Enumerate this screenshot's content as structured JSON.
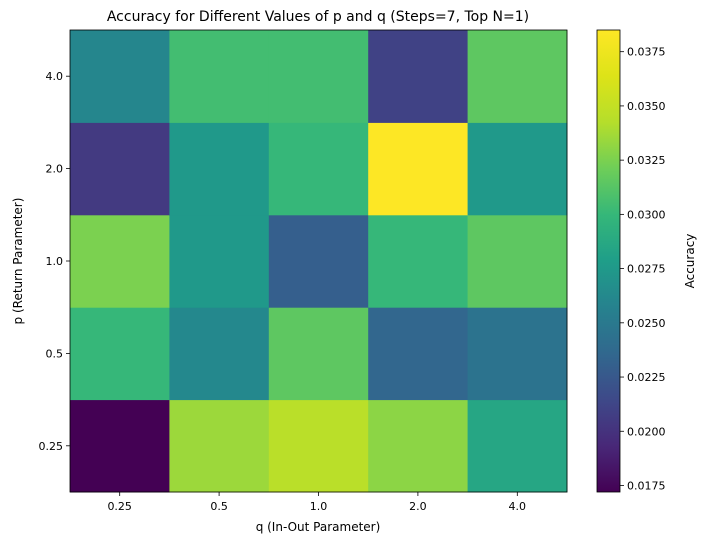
{
  "chart_data": {
    "type": "heatmap",
    "title": "Accuracy for Different Values of p and q (Steps=7, Top N=1)",
    "xlabel": "q (In-Out Parameter)",
    "ylabel": "p (Return Parameter)",
    "x_categories": [
      "0.25",
      "0.5",
      "1.0",
      "2.0",
      "4.0"
    ],
    "y_categories": [
      "0.25",
      "0.5",
      "1.0",
      "2.0",
      "4.0"
    ],
    "values": [
      [
        0.0172,
        0.0335,
        0.0345,
        0.033,
        0.0285
      ],
      [
        0.03,
        0.0262,
        0.0315,
        0.0235,
        0.0245
      ],
      [
        0.0325,
        0.0275,
        0.023,
        0.03,
        0.0315
      ],
      [
        0.0205,
        0.0275,
        0.03,
        0.0385,
        0.0275
      ],
      [
        0.026,
        0.0305,
        0.0305,
        0.021,
        0.0315
      ]
    ],
    "colorbar": {
      "label": "Accuracy",
      "range": [
        0.0172,
        0.0385
      ],
      "ticks": [
        "0.0175",
        "0.0200",
        "0.0225",
        "0.0250",
        "0.0275",
        "0.0300",
        "0.0325",
        "0.0350",
        "0.0375"
      ],
      "colormap": "viridis"
    },
    "grid": false
  }
}
